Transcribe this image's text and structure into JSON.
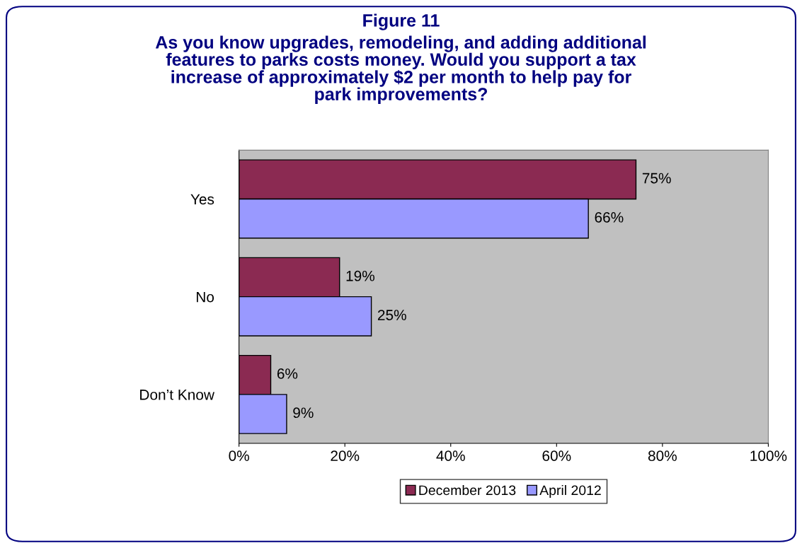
{
  "chart_data": {
    "type": "bar",
    "orientation": "horizontal",
    "title": "Figure 11",
    "subtitle": "As you know upgrades, remodeling, and adding additional\nfeatures to parks costs money. Would you support a tax\nincrease of approximately $2 per month to help pay for\npark improvements?",
    "categories": [
      "Yes",
      "No",
      "Don’t Know"
    ],
    "series": [
      {
        "name": "December 2013",
        "color": "#8b2a52",
        "values": [
          75,
          19,
          6
        ],
        "value_labels": [
          "75%",
          "19%",
          "6%"
        ]
      },
      {
        "name": "April 2012",
        "color": "#9999ff",
        "values": [
          66,
          25,
          9
        ],
        "value_labels": [
          "66%",
          "25%",
          "9%"
        ]
      }
    ],
    "xlim": [
      0,
      100
    ],
    "xticks": [
      {
        "value": 0,
        "label": "0%"
      },
      {
        "value": 20,
        "label": "20%"
      },
      {
        "value": 40,
        "label": "40%"
      },
      {
        "value": 60,
        "label": "60%"
      },
      {
        "value": 80,
        "label": "80%"
      },
      {
        "value": 100,
        "label": "100%"
      }
    ],
    "grid": false,
    "legend": "bottom"
  }
}
